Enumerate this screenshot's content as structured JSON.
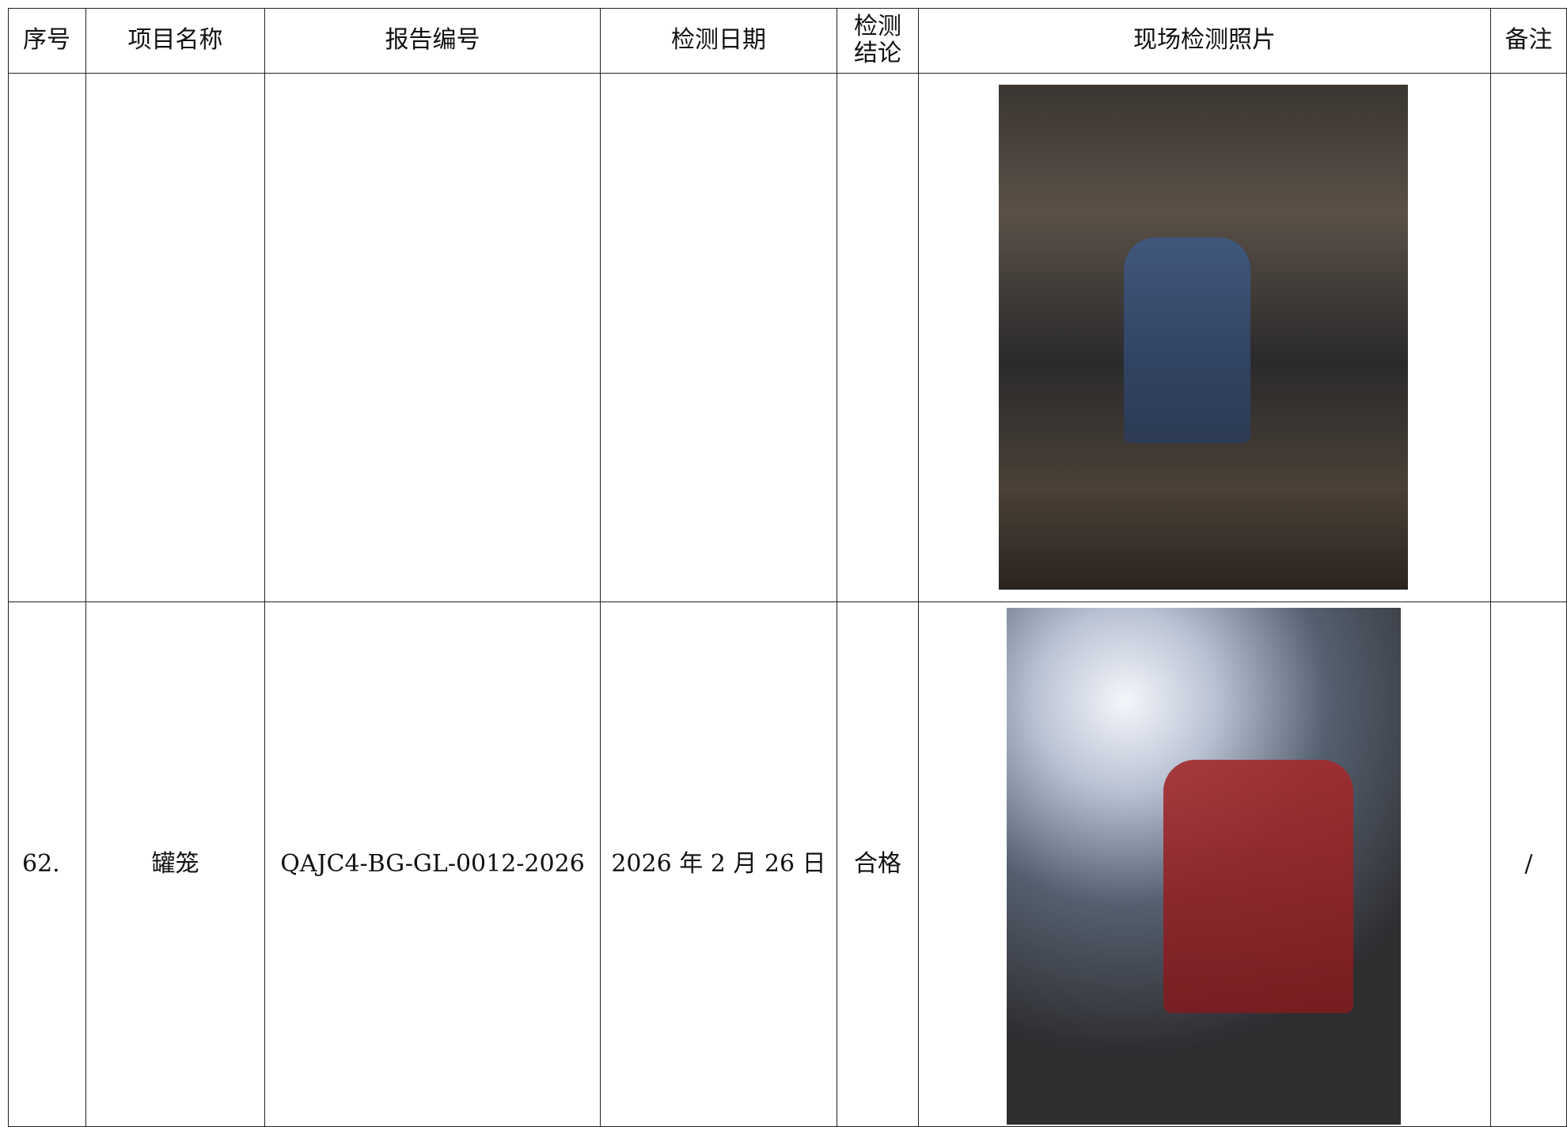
{
  "table": {
    "header": [
      "序号",
      "项目名称",
      "报告编号",
      "检测日期",
      "检测结论",
      "现场检测照片",
      "备注"
    ],
    "rows": [
      [],
      [
        "62.",
        "罐笼",
        "QAJC4-BG-GL-0012-2026",
        "2026 年 2 月 26 日",
        "合格",
        "/"
      ]
    ]
  }
}
